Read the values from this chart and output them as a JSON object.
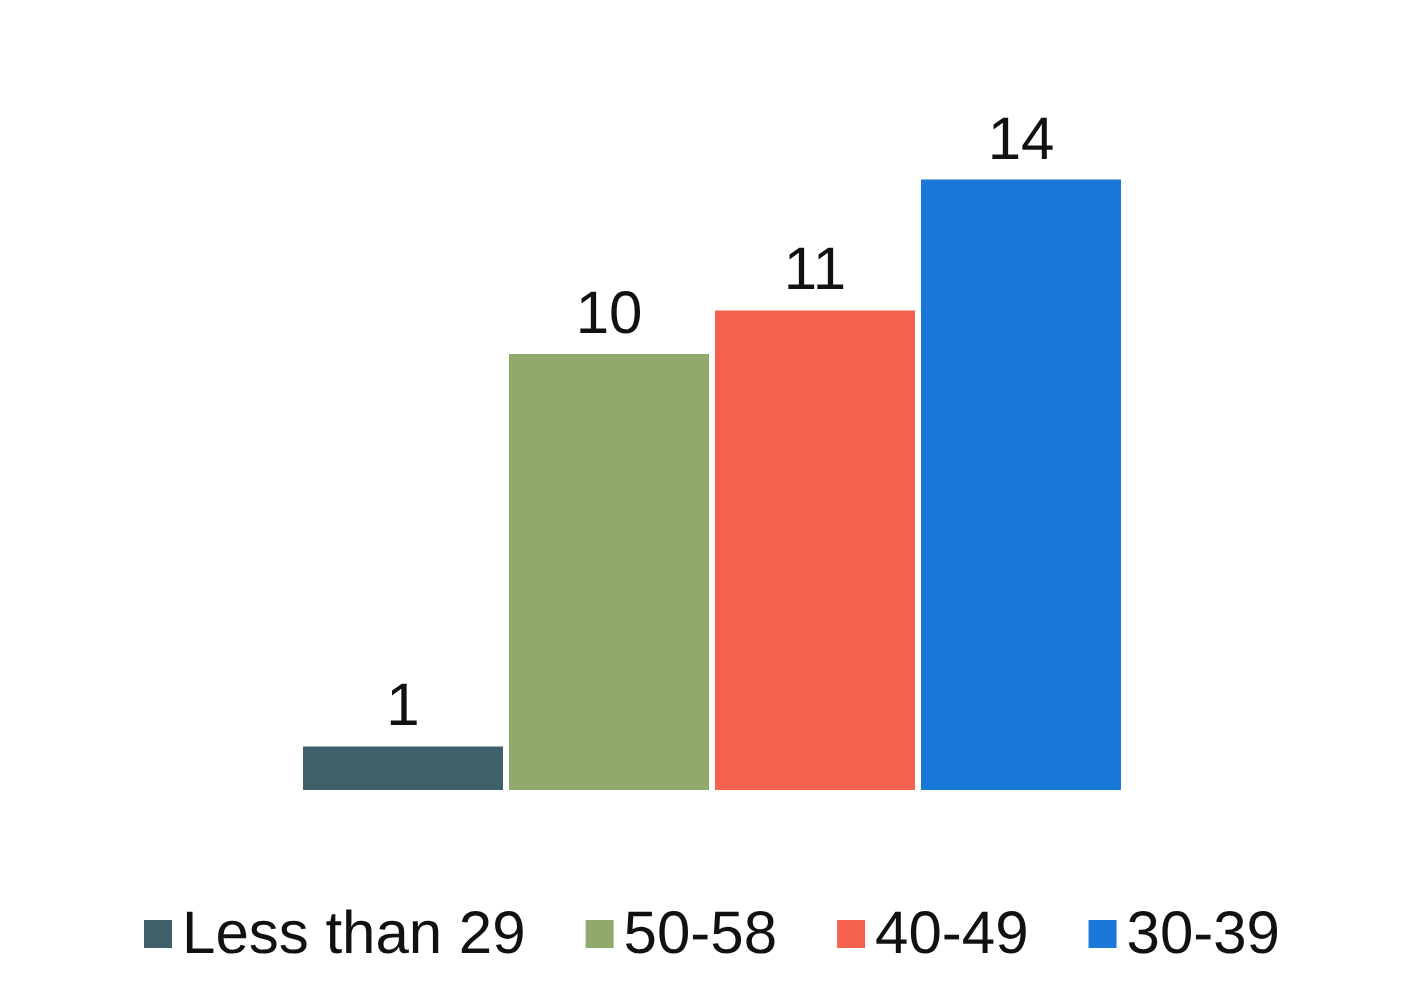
{
  "chart_data": {
    "type": "bar",
    "categories": [
      null
    ],
    "series": [
      {
        "name": "Less than 29",
        "color": "#3f5f6b",
        "values": [
          1
        ]
      },
      {
        "name": "50-58",
        "color": "#8faa6b",
        "values": [
          10
        ]
      },
      {
        "name": "40-49",
        "color": "#f5604f",
        "values": [
          11
        ]
      },
      {
        "name": "30-39",
        "color": "#1a78d8",
        "values": [
          14
        ]
      }
    ],
    "data_labels": true,
    "legend": "bottom"
  }
}
